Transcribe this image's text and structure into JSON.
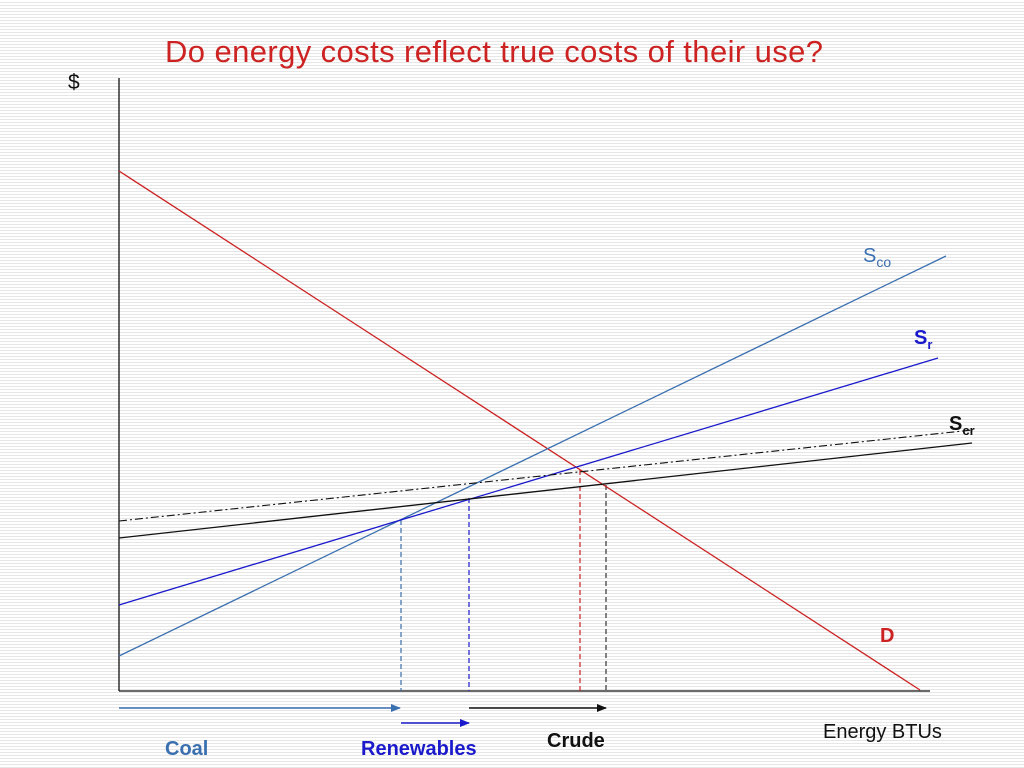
{
  "title": "Do energy costs reflect true costs of their use?",
  "colors": {
    "title": "#cc2222",
    "demand": "#cc2222",
    "coal": "#3a6fb0",
    "renewables": "#1a1acc",
    "crude": "#111111",
    "crude_social": "#111111",
    "axis": "#111111"
  },
  "axes": {
    "y_label": "$",
    "x_label": "Energy BTUs"
  },
  "curves": {
    "demand": {
      "label": "D"
    },
    "coal_supply": {
      "label_main": "S",
      "label_sub": "co"
    },
    "renewables_supply": {
      "label_main": "S",
      "label_sub": "r"
    },
    "crude_supply": {
      "label_main": "S",
      "label_sub": "cr"
    }
  },
  "quantity_labels": {
    "coal": "Coal",
    "renewables": "Renewables",
    "crude": "Crude"
  }
}
